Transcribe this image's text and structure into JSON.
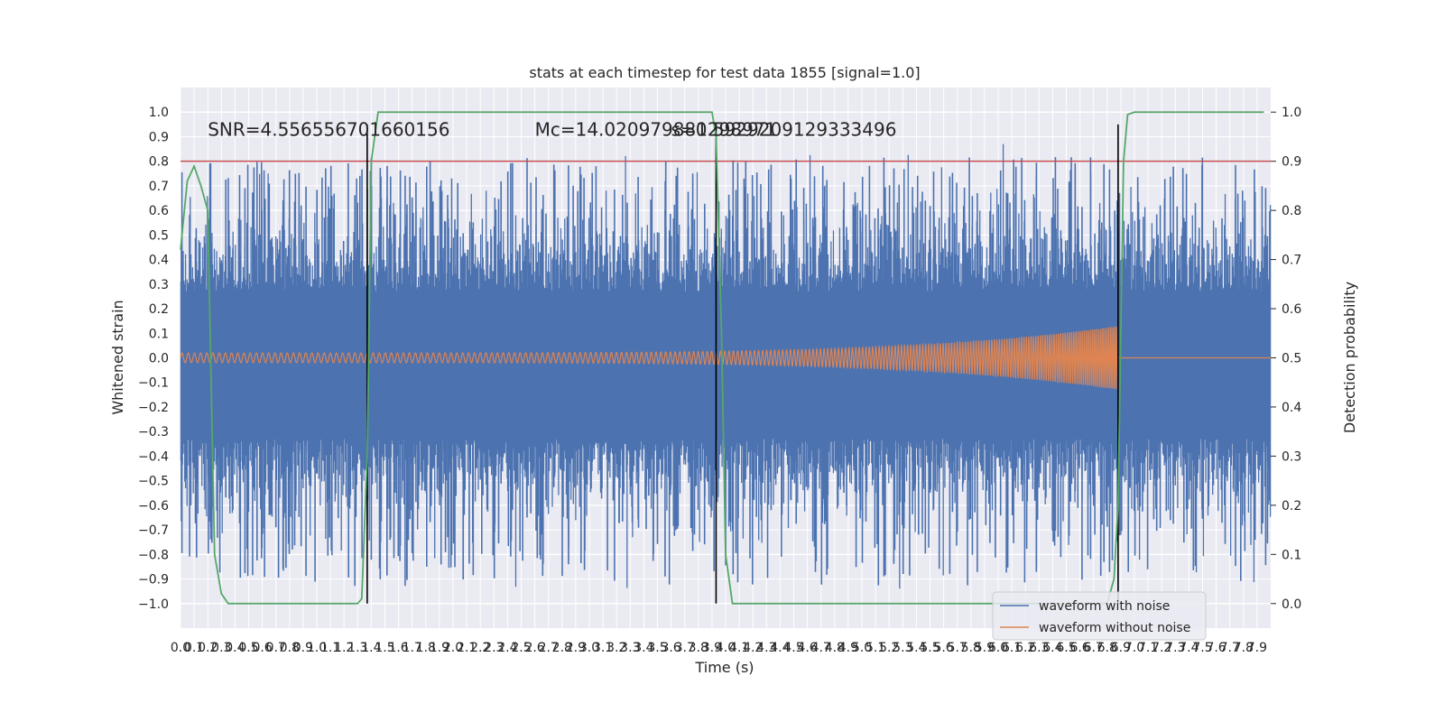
{
  "chart_data": {
    "type": "line",
    "title": "stats at each timestep for test data 1855 [signal=1.0]",
    "xlabel": "Time (s)",
    "ylabel": "Whitened strain",
    "y2label": "Detection probability",
    "xlim": [
      0.0,
      8.0
    ],
    "ylim": [
      -1.1,
      1.1
    ],
    "y2lim": [
      -0.05,
      1.05
    ],
    "x_ticks": [
      0.0,
      0.1,
      0.2,
      0.3,
      0.4,
      0.5,
      0.6,
      0.7,
      0.8,
      0.9,
      1.0,
      1.1,
      1.2,
      1.3,
      1.4,
      1.5,
      1.6,
      1.7,
      1.8,
      1.9,
      2.0,
      2.1,
      2.2,
      2.3,
      2.4,
      2.5,
      2.6,
      2.7,
      2.8,
      2.9,
      3.0,
      3.1,
      3.2,
      3.3,
      3.4,
      3.5,
      3.6,
      3.7,
      3.8,
      3.9,
      4.0,
      4.1,
      4.2,
      4.3,
      4.4,
      4.5,
      4.6,
      4.7,
      4.8,
      4.9,
      5.0,
      5.1,
      5.2,
      5.3,
      5.4,
      5.5,
      5.6,
      5.7,
      5.8,
      5.9,
      6.0,
      6.1,
      6.2,
      6.3,
      6.4,
      6.5,
      6.6,
      6.7,
      6.8,
      6.9,
      7.0,
      7.1,
      7.2,
      7.3,
      7.4,
      7.5,
      7.6,
      7.7,
      7.8,
      7.9
    ],
    "x_tick_labels": [
      "0.0",
      "0.1",
      "0.2",
      "0.3",
      "0.4",
      "0.5",
      "0.6",
      "0.7",
      "0.8",
      "0.9",
      "1.0",
      "1.1",
      "1.2",
      "1.3",
      "1.4",
      "1.5",
      "1.6",
      "1.7",
      "1.8",
      "1.9",
      "2.0",
      "2.1",
      "2.2",
      "2.3",
      "2.4",
      "2.5",
      "2.6",
      "2.7",
      "2.8",
      "2.9",
      "3.0",
      "3.1",
      "3.2",
      "3.3",
      "3.4",
      "3.5",
      "3.6",
      "3.7",
      "3.8",
      "3.9",
      "4.0",
      "4.1",
      "4.2",
      "4.3",
      "4.4",
      "4.5",
      "4.6",
      "4.7",
      "4.8",
      "4.9",
      "5.0",
      "5.1",
      "5.2",
      "5.3",
      "5.4",
      "5.5",
      "5.6",
      "5.7",
      "5.8",
      "5.9",
      "6.0",
      "6.1",
      "6.2",
      "6.3",
      "6.4",
      "6.5",
      "6.6",
      "6.7",
      "6.8",
      "6.9",
      "7.0",
      "7.1",
      "7.2",
      "7.3",
      "7.4",
      "7.5",
      "7.6",
      "7.7",
      "7.8",
      "7.9"
    ],
    "y_ticks": [
      -1.0,
      -0.9,
      -0.8,
      -0.7,
      -0.6,
      -0.5,
      -0.4,
      -0.3,
      -0.2,
      -0.1,
      0.0,
      0.1,
      0.2,
      0.3,
      0.4,
      0.5,
      0.6,
      0.7,
      0.8,
      0.9,
      1.0
    ],
    "y_tick_labels": [
      "−1.0",
      "−0.9",
      "−0.8",
      "−0.7",
      "−0.6",
      "−0.5",
      "−0.4",
      "−0.3",
      "−0.2",
      "−0.1",
      "0.0",
      "0.1",
      "0.2",
      "0.3",
      "0.4",
      "0.5",
      "0.6",
      "0.7",
      "0.8",
      "0.9",
      "1.0"
    ],
    "y2_ticks": [
      0.0,
      0.1,
      0.2,
      0.3,
      0.4,
      0.5,
      0.6,
      0.7,
      0.8,
      0.9,
      1.0
    ],
    "y2_tick_labels": [
      "0.0",
      "0.1",
      "0.2",
      "0.3",
      "0.4",
      "0.5",
      "0.6",
      "0.7",
      "0.8",
      "0.9",
      "1.0"
    ],
    "threshold": 0.9,
    "event_markers_x": [
      1.37,
      3.93,
      6.88
    ],
    "series": [
      {
        "name": "waveform with noise",
        "axis": "left",
        "color": "#4c72b0",
        "style": "noise",
        "duration_s": 8.0,
        "sample_rate_hz": 2048,
        "approx_envelope": [
          -1.0,
          0.95
        ],
        "approx_typical_amplitude": 0.4
      },
      {
        "name": "waveform without noise",
        "axis": "left",
        "color": "#dd8452",
        "style": "chirp",
        "start_s": 0.0,
        "merger_s": 6.88,
        "start_amplitude": 0.02,
        "peak_amplitude": 0.13,
        "start_freq_hz": 22,
        "merger_freq_hz": 70
      },
      {
        "name": "Detection probability",
        "axis": "right",
        "color": "#55a868",
        "style": "line",
        "x": [
          0.0,
          0.05,
          0.1,
          0.15,
          0.2,
          0.25,
          0.3,
          0.35,
          1.2,
          1.3,
          1.33,
          1.37,
          1.4,
          1.45,
          3.85,
          3.9,
          3.93,
          3.97,
          4.0,
          4.05,
          6.75,
          6.8,
          6.85,
          6.88,
          6.92,
          6.95,
          7.0,
          7.05,
          7.95
        ],
        "values": [
          0.72,
          0.86,
          0.89,
          0.85,
          0.8,
          0.1,
          0.02,
          0.0,
          0.0,
          0.0,
          0.01,
          0.3,
          0.9,
          1.0,
          1.0,
          1.0,
          0.95,
          0.55,
          0.1,
          0.0,
          0.0,
          0.0,
          0.05,
          0.2,
          0.9,
          0.995,
          1.0,
          1.0,
          1.0
        ]
      }
    ],
    "annotations": [
      {
        "text": "SNR=4.556556701660156",
        "x": 0.2,
        "y": 0.93
      },
      {
        "text": "Mᴄ=14.020979881298971",
        "x": 2.6,
        "y": 0.93
      },
      {
        "text": "s=0.5929209129333496",
        "x": 3.6,
        "y": 0.93
      }
    ],
    "legend": {
      "position": "bottom-right",
      "entries": [
        "waveform with noise",
        "waveform without noise"
      ]
    },
    "grid": true,
    "style": "seaborn-darkgrid"
  },
  "colors": {
    "plot_background": "#eaeaf2",
    "grid": "#ffffff",
    "threshold_line": "#c44e52",
    "event_marker": "#000000"
  }
}
